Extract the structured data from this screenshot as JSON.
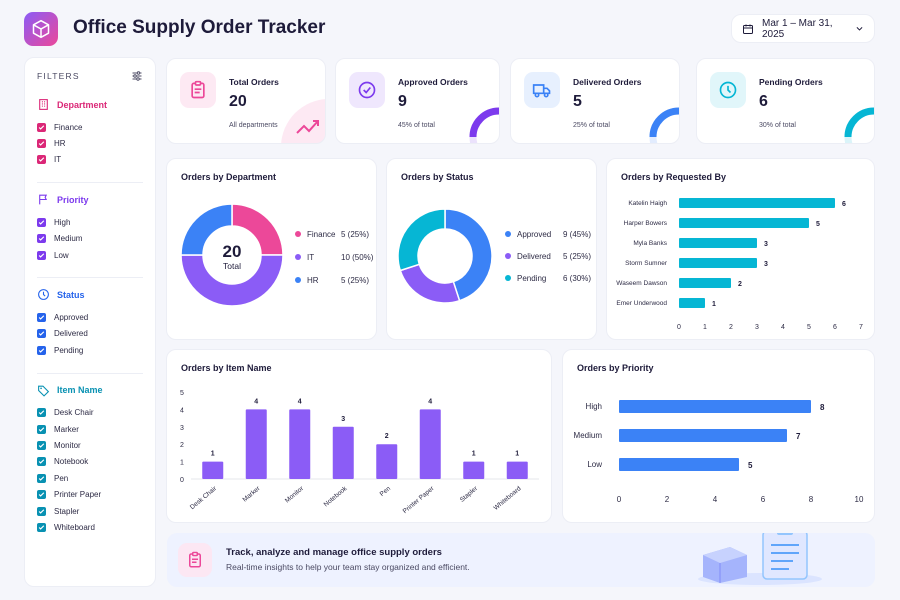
{
  "header": {
    "title": "Office Supply Order Tracker",
    "date_range": "Mar 1 – Mar 31, 2025"
  },
  "filters": {
    "heading": "FILTERS",
    "sections": [
      {
        "title": "Department",
        "color": "#db2777",
        "icon": "building-icon",
        "items": [
          "Finance",
          "HR",
          "IT"
        ]
      },
      {
        "title": "Priority",
        "color": "#7c3aed",
        "icon": "flag-icon",
        "items": [
          "High",
          "Medium",
          "Low"
        ]
      },
      {
        "title": "Status",
        "color": "#2563eb",
        "icon": "clock-icon",
        "items": [
          "Approved",
          "Delivered",
          "Pending"
        ]
      },
      {
        "title": "Item Name",
        "color": "#0891b2",
        "icon": "tag-icon",
        "items": [
          "Desk Chair",
          "Marker",
          "Monitor",
          "Notebook",
          "Pen",
          "Printer Paper",
          "Stapler",
          "Whiteboard"
        ]
      }
    ]
  },
  "kpis": [
    {
      "label": "Total Orders",
      "value": "20",
      "sub": "All departments",
      "icon": "clipboard-icon",
      "color": "#ec4899"
    },
    {
      "label": "Approved Orders",
      "value": "9",
      "sub": "45% of total",
      "icon": "check-circle-icon",
      "color": "#7c3aed",
      "fraction": 0.45
    },
    {
      "label": "Delivered Orders",
      "value": "5",
      "sub": "25% of total",
      "icon": "truck-icon",
      "color": "#3b82f6",
      "fraction": 0.25
    },
    {
      "label": "Pending Orders",
      "value": "6",
      "sub": "30% of total",
      "icon": "clock-icon",
      "color": "#06b6d4",
      "fraction": 0.3
    }
  ],
  "chart_titles": {
    "department": "Orders by Department",
    "status": "Orders by Status",
    "requested": "Orders by Requested By",
    "item": "Orders by Item Name",
    "priority": "Orders by Priority"
  },
  "chart_data": [
    {
      "type": "pie",
      "title": "Orders by Department",
      "center_value": "20",
      "center_label": "Total",
      "slices": [
        {
          "label": "Finance",
          "value": 5,
          "display": "5 (25%)",
          "color": "#ec4899"
        },
        {
          "label": "IT",
          "value": 10,
          "display": "10 (50%)",
          "color": "#8b5cf6"
        },
        {
          "label": "HR",
          "value": 5,
          "display": "5 (25%)",
          "color": "#3b82f6"
        }
      ]
    },
    {
      "type": "pie",
      "title": "Orders by Status",
      "slices": [
        {
          "label": "Approved",
          "value": 9,
          "display": "9 (45%)",
          "color": "#3b82f6"
        },
        {
          "label": "Delivered",
          "value": 5,
          "display": "5 (25%)",
          "color": "#8b5cf6"
        },
        {
          "label": "Pending",
          "value": 6,
          "display": "6 (30%)",
          "color": "#06b6d4"
        }
      ]
    },
    {
      "type": "bar",
      "orientation": "horizontal",
      "title": "Orders by Requested By",
      "categories": [
        "Katelin Haigh",
        "Harper Bowers",
        "Myla Banks",
        "Storm Sumner",
        "Waseem Dawson",
        "Emer Underwood"
      ],
      "values": [
        6,
        5,
        3,
        3,
        2,
        1
      ],
      "xlim": [
        0,
        7
      ],
      "ticks": [
        0,
        1,
        2,
        3,
        4,
        5,
        6,
        7
      ],
      "color": "#06b6d4"
    },
    {
      "type": "bar",
      "title": "Orders by Item Name",
      "categories": [
        "Desk Chair",
        "Marker",
        "Monitor",
        "Notebook",
        "Pen",
        "Printer Paper",
        "Stapler",
        "Whiteboard"
      ],
      "values": [
        1,
        4,
        4,
        3,
        2,
        4,
        1,
        1
      ],
      "ylim": [
        0,
        5
      ],
      "ticks": [
        0,
        1,
        2,
        3,
        4,
        5
      ],
      "color": "#8b5cf6"
    },
    {
      "type": "bar",
      "orientation": "horizontal",
      "title": "Orders by Priority",
      "categories": [
        "High",
        "Medium",
        "Low"
      ],
      "values": [
        8,
        7,
        5
      ],
      "xlim": [
        0,
        10
      ],
      "ticks": [
        0,
        2,
        4,
        6,
        8,
        10
      ],
      "color": "#3b82f6"
    }
  ],
  "banner": {
    "title": "Track, analyze and manage office supply orders",
    "subtitle": "Real-time insights to help your team stay organized and efficient."
  }
}
